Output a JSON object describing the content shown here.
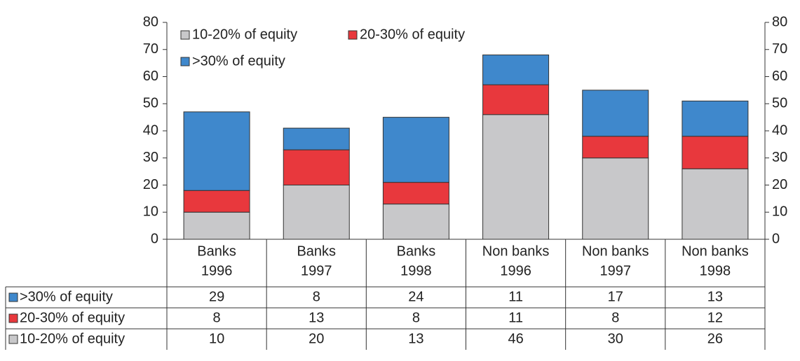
{
  "chart_data": {
    "type": "stacked_bar",
    "categories": [
      [
        "Banks",
        "1996"
      ],
      [
        "Banks",
        "1997"
      ],
      [
        "Banks",
        "1998"
      ],
      [
        "Non banks",
        "1996"
      ],
      [
        "Non banks",
        "1997"
      ],
      [
        "Non banks",
        "1998"
      ]
    ],
    "series": [
      {
        "name": "10-20% of equity",
        "color": "#c8c8ca",
        "values": [
          10,
          20,
          13,
          46,
          30,
          26
        ]
      },
      {
        "name": "20-30% of equity",
        "color": "#e8383d",
        "values": [
          8,
          13,
          8,
          11,
          8,
          12
        ]
      },
      {
        "name": ">30% of equity",
        "color": "#3f88cc",
        "values": [
          29,
          8,
          24,
          11,
          17,
          13
        ]
      }
    ],
    "ylim": [
      0,
      80
    ],
    "yticks": [
      0,
      10,
      20,
      30,
      40,
      50,
      60,
      70,
      80
    ],
    "y2lim": [
      0,
      80
    ],
    "y2ticks": [
      0,
      10,
      20,
      30,
      40,
      50,
      60,
      70,
      80
    ],
    "legend": "top-left",
    "data_table": true
  }
}
